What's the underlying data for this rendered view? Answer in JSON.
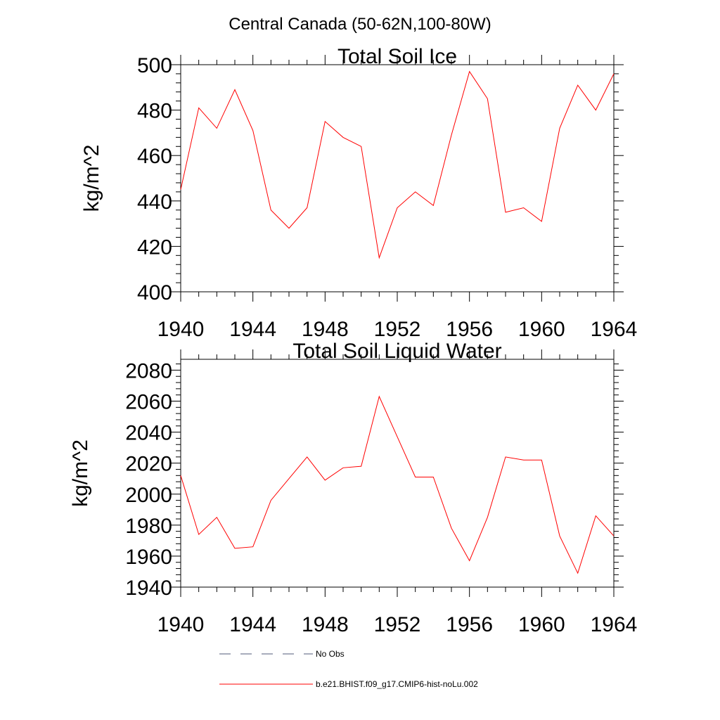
{
  "figure_title": "Central Canada (50-62N,100-80W)",
  "legend": {
    "obs_label": "No Obs",
    "model_label": "b.e21.BHIST.f09_g17.CMIP6-hist-noLu.002",
    "obs_color": "#505a78",
    "model_color": "#ff0000"
  },
  "chart_data": [
    {
      "type": "line",
      "title": "Total Soil Ice",
      "xlabel": "",
      "ylabel": "kg/m^2",
      "xlim": [
        1940,
        1964
      ],
      "ylim": [
        400,
        500
      ],
      "xticks": [
        1940,
        1944,
        1948,
        1952,
        1956,
        1960,
        1964
      ],
      "yticks": [
        400,
        420,
        440,
        460,
        480,
        500
      ],
      "grid": false,
      "series": [
        {
          "name": "b.e21.BHIST.f09_g17.CMIP6-hist-noLu.002",
          "color": "#ff0000",
          "x": [
            1940,
            1941,
            1942,
            1943,
            1944,
            1945,
            1946,
            1947,
            1948,
            1949,
            1950,
            1951,
            1952,
            1953,
            1954,
            1955,
            1956,
            1957,
            1958,
            1959,
            1960,
            1961,
            1962,
            1963,
            1964
          ],
          "values": [
            445,
            481,
            472,
            489,
            471,
            436,
            428,
            437,
            475,
            468,
            464,
            415,
            437,
            444,
            438,
            469,
            497,
            485,
            435,
            437,
            431,
            472,
            491,
            480,
            496
          ]
        }
      ]
    },
    {
      "type": "line",
      "title": "Total Soil Liquid Water",
      "xlabel": "",
      "ylabel": "kg/m^2",
      "xlim": [
        1940,
        1964
      ],
      "ylim": [
        1940,
        2087
      ],
      "xticks": [
        1940,
        1944,
        1948,
        1952,
        1956,
        1960,
        1964
      ],
      "yticks": [
        1940,
        1960,
        1980,
        2000,
        2020,
        2040,
        2060,
        2080
      ],
      "grid": false,
      "series": [
        {
          "name": "b.e21.BHIST.f09_g17.CMIP6-hist-noLu.002",
          "color": "#ff0000",
          "x": [
            1940,
            1941,
            1942,
            1943,
            1944,
            1945,
            1946,
            1947,
            1948,
            1949,
            1950,
            1951,
            1952,
            1953,
            1954,
            1955,
            1956,
            1957,
            1958,
            1959,
            1960,
            1961,
            1962,
            1963,
            1964
          ],
          "values": [
            2012,
            1974,
            1985,
            1965,
            1966,
            1996,
            2010,
            2024,
            2009,
            2017,
            2018,
            2063,
            2037,
            2011,
            2011,
            1978,
            1957,
            1985,
            2024,
            2022,
            2022,
            1973,
            1949,
            1986,
            1973
          ]
        }
      ]
    }
  ]
}
